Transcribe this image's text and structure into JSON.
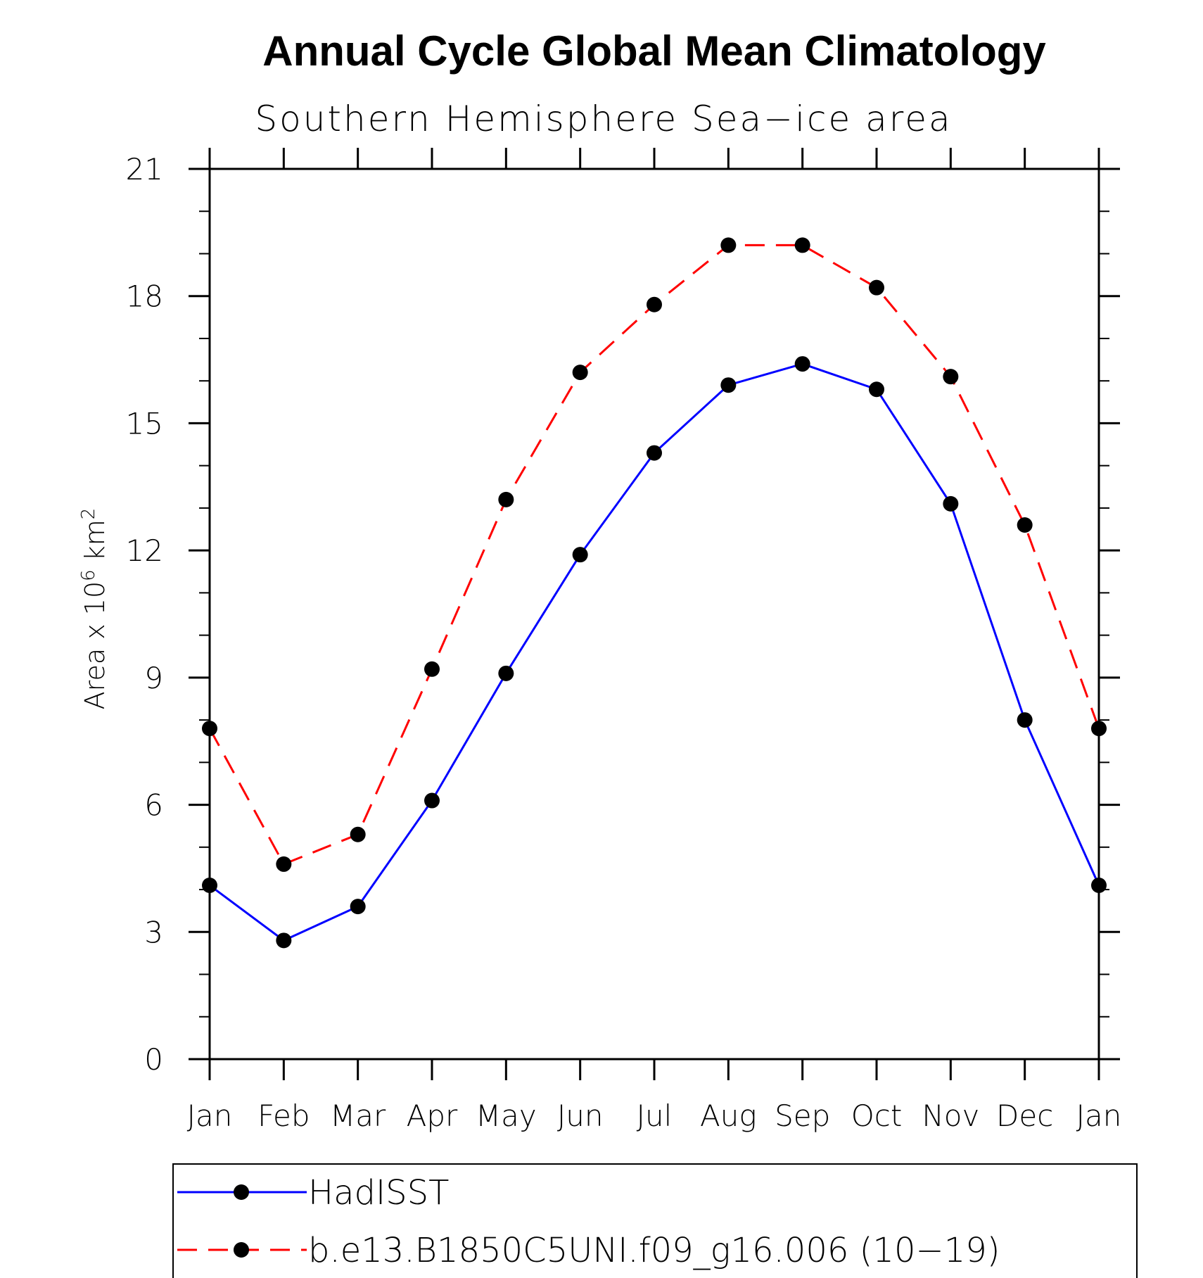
{
  "chart_data": {
    "type": "line",
    "title": "Annual Cycle Global Mean Climatology",
    "subtitle": "Southern Hemisphere Sea−ice area",
    "ylabel": "Area x 10^6 km^2",
    "ylabel_parts": {
      "base": "Area x 10",
      "exp1": "6",
      "mid": " km",
      "exp2": "2"
    },
    "categories": [
      "Jan",
      "Feb",
      "Mar",
      "Apr",
      "May",
      "Jun",
      "Jul",
      "Aug",
      "Sep",
      "Oct",
      "Nov",
      "Dec",
      "Jan"
    ],
    "ylim": [
      0,
      21
    ],
    "yticks": [
      0,
      3,
      6,
      9,
      12,
      15,
      18,
      21
    ],
    "y_minor_step": 1,
    "grid": false,
    "legend_position": "bottom",
    "series": [
      {
        "name": "HadISST",
        "color": "#0000ff",
        "dash": "solid",
        "values": [
          4.1,
          2.8,
          3.6,
          6.1,
          9.1,
          11.9,
          14.3,
          15.9,
          16.4,
          15.8,
          13.1,
          8.0,
          4.1
        ]
      },
      {
        "name": "b.e13.B1850C5UNI.f09_g16.006 (10−19)",
        "color": "#ff0000",
        "dash": "dashed",
        "values": [
          7.8,
          4.6,
          5.3,
          9.2,
          13.2,
          16.2,
          17.8,
          19.2,
          19.2,
          18.2,
          16.1,
          12.6,
          7.8
        ]
      }
    ]
  }
}
